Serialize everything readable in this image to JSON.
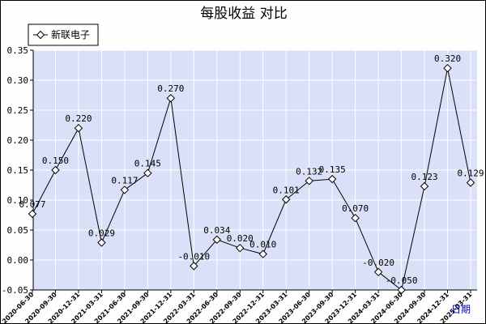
{
  "chart_data": {
    "type": "line",
    "title": "每股收益  对比",
    "xlabel": "日期",
    "ylabel": "",
    "ylim": [
      -0.05,
      0.35
    ],
    "yticks": [
      "0.35",
      "0.30",
      "0.25",
      "0.20",
      "0.15",
      "0.10",
      "0.05",
      "0.00",
      "-0.05"
    ],
    "ytick_values": [
      0.35,
      0.3,
      0.25,
      0.2,
      0.15,
      0.1,
      0.05,
      0.0,
      -0.05
    ],
    "grid": true,
    "legend_position": "top-left",
    "colors": {
      "plot_bg": "#d9e0f7",
      "grid": "#ffffff",
      "line": "#000000",
      "marker_fill": "#ffffff",
      "xaxis_name": "#0000cc"
    },
    "categories": [
      "2020-06-30",
      "2020-09-30",
      "2020-12-31",
      "2021-03-31",
      "2021-06-30",
      "2021-09-30",
      "2021-12-31",
      "2022-03-31",
      "2022-06-30",
      "2022-09-30",
      "2022-12-31",
      "2023-03-31",
      "2023-06-30",
      "2023-09-30",
      "2023-12-31",
      "2024-03-31",
      "2024-06-30",
      "2024-09-30",
      "2024-12-31",
      "2025-03-31"
    ],
    "series": [
      {
        "name": "新联电子",
        "values": [
          0.077,
          0.15,
          0.22,
          0.029,
          0.117,
          0.145,
          0.27,
          -0.01,
          0.034,
          0.02,
          0.01,
          0.101,
          0.132,
          0.135,
          0.07,
          -0.02,
          -0.05,
          0.123,
          0.32,
          0.129
        ],
        "labels": [
          "0.077",
          "0.150",
          "0.220",
          "0.029",
          "0.117",
          "0.145",
          "0.270",
          "-0.010",
          "0.034",
          "0.020",
          "0.010",
          "0.101",
          "0.132",
          "0.135",
          "0.070",
          "-0.020",
          "-0.050",
          "0.123",
          "0.320",
          "0.129"
        ]
      }
    ]
  }
}
